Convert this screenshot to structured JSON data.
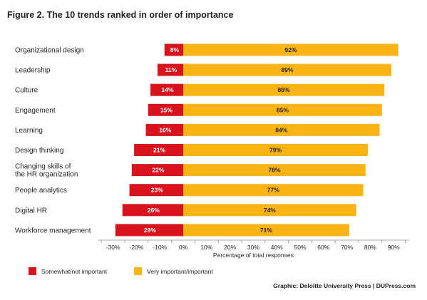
{
  "figure_title": "Figure 2. The 10 trends ranked in order of importance",
  "colors": {
    "negative": "#d7141e",
    "positive": "#fbb416",
    "axis": "#8a8a8a"
  },
  "chart_data": {
    "type": "bar",
    "orientation": "horizontal",
    "stacked": "diverging",
    "categories": [
      "Organizational design",
      "Leadership",
      "Culture",
      "Engagement",
      "Learning",
      "Design thinking",
      "Changing skills of the HR organization",
      "People analytics",
      "Digital HR",
      "Workforce management"
    ],
    "category_lines": [
      [
        "Organizational design"
      ],
      [
        "Leadership"
      ],
      [
        "Culture"
      ],
      [
        "Engagement"
      ],
      [
        "Learning"
      ],
      [
        "Design thinking"
      ],
      [
        "Changing skills of",
        "the HR organization"
      ],
      [
        "People analytics"
      ],
      [
        "Digital HR"
      ],
      [
        "Workforce management"
      ]
    ],
    "series": [
      {
        "name": "Somewhat/not important",
        "values": [
          -8,
          -11,
          -14,
          -15,
          -16,
          -21,
          -22,
          -23,
          -26,
          -29
        ],
        "labels": [
          "8%",
          "11%",
          "14%",
          "15%",
          "16%",
          "21%",
          "22%",
          "23%",
          "26%",
          "29%"
        ]
      },
      {
        "name": "Very important/important",
        "values": [
          92,
          89,
          86,
          85,
          84,
          79,
          78,
          77,
          74,
          71
        ],
        "labels": [
          "92%",
          "89%",
          "86%",
          "85%",
          "84%",
          "79%",
          "78%",
          "77%",
          "74%",
          "71%"
        ]
      }
    ],
    "xlim": [
      -30,
      95
    ],
    "xticks": [
      -30,
      -20,
      -10,
      0,
      10,
      20,
      30,
      40,
      50,
      60,
      70,
      80,
      90
    ],
    "xtick_labels": [
      "-30%",
      "-20%",
      "-10%",
      "0%",
      "10%",
      "20%",
      "30%",
      "40%",
      "50%",
      "60%",
      "70%",
      "80%",
      "90%"
    ],
    "xlabel": "Percentage of total responses",
    "legend_position": "bottom-left"
  },
  "source": "Graphic: Deloitte University Press  |  DUPress.com"
}
